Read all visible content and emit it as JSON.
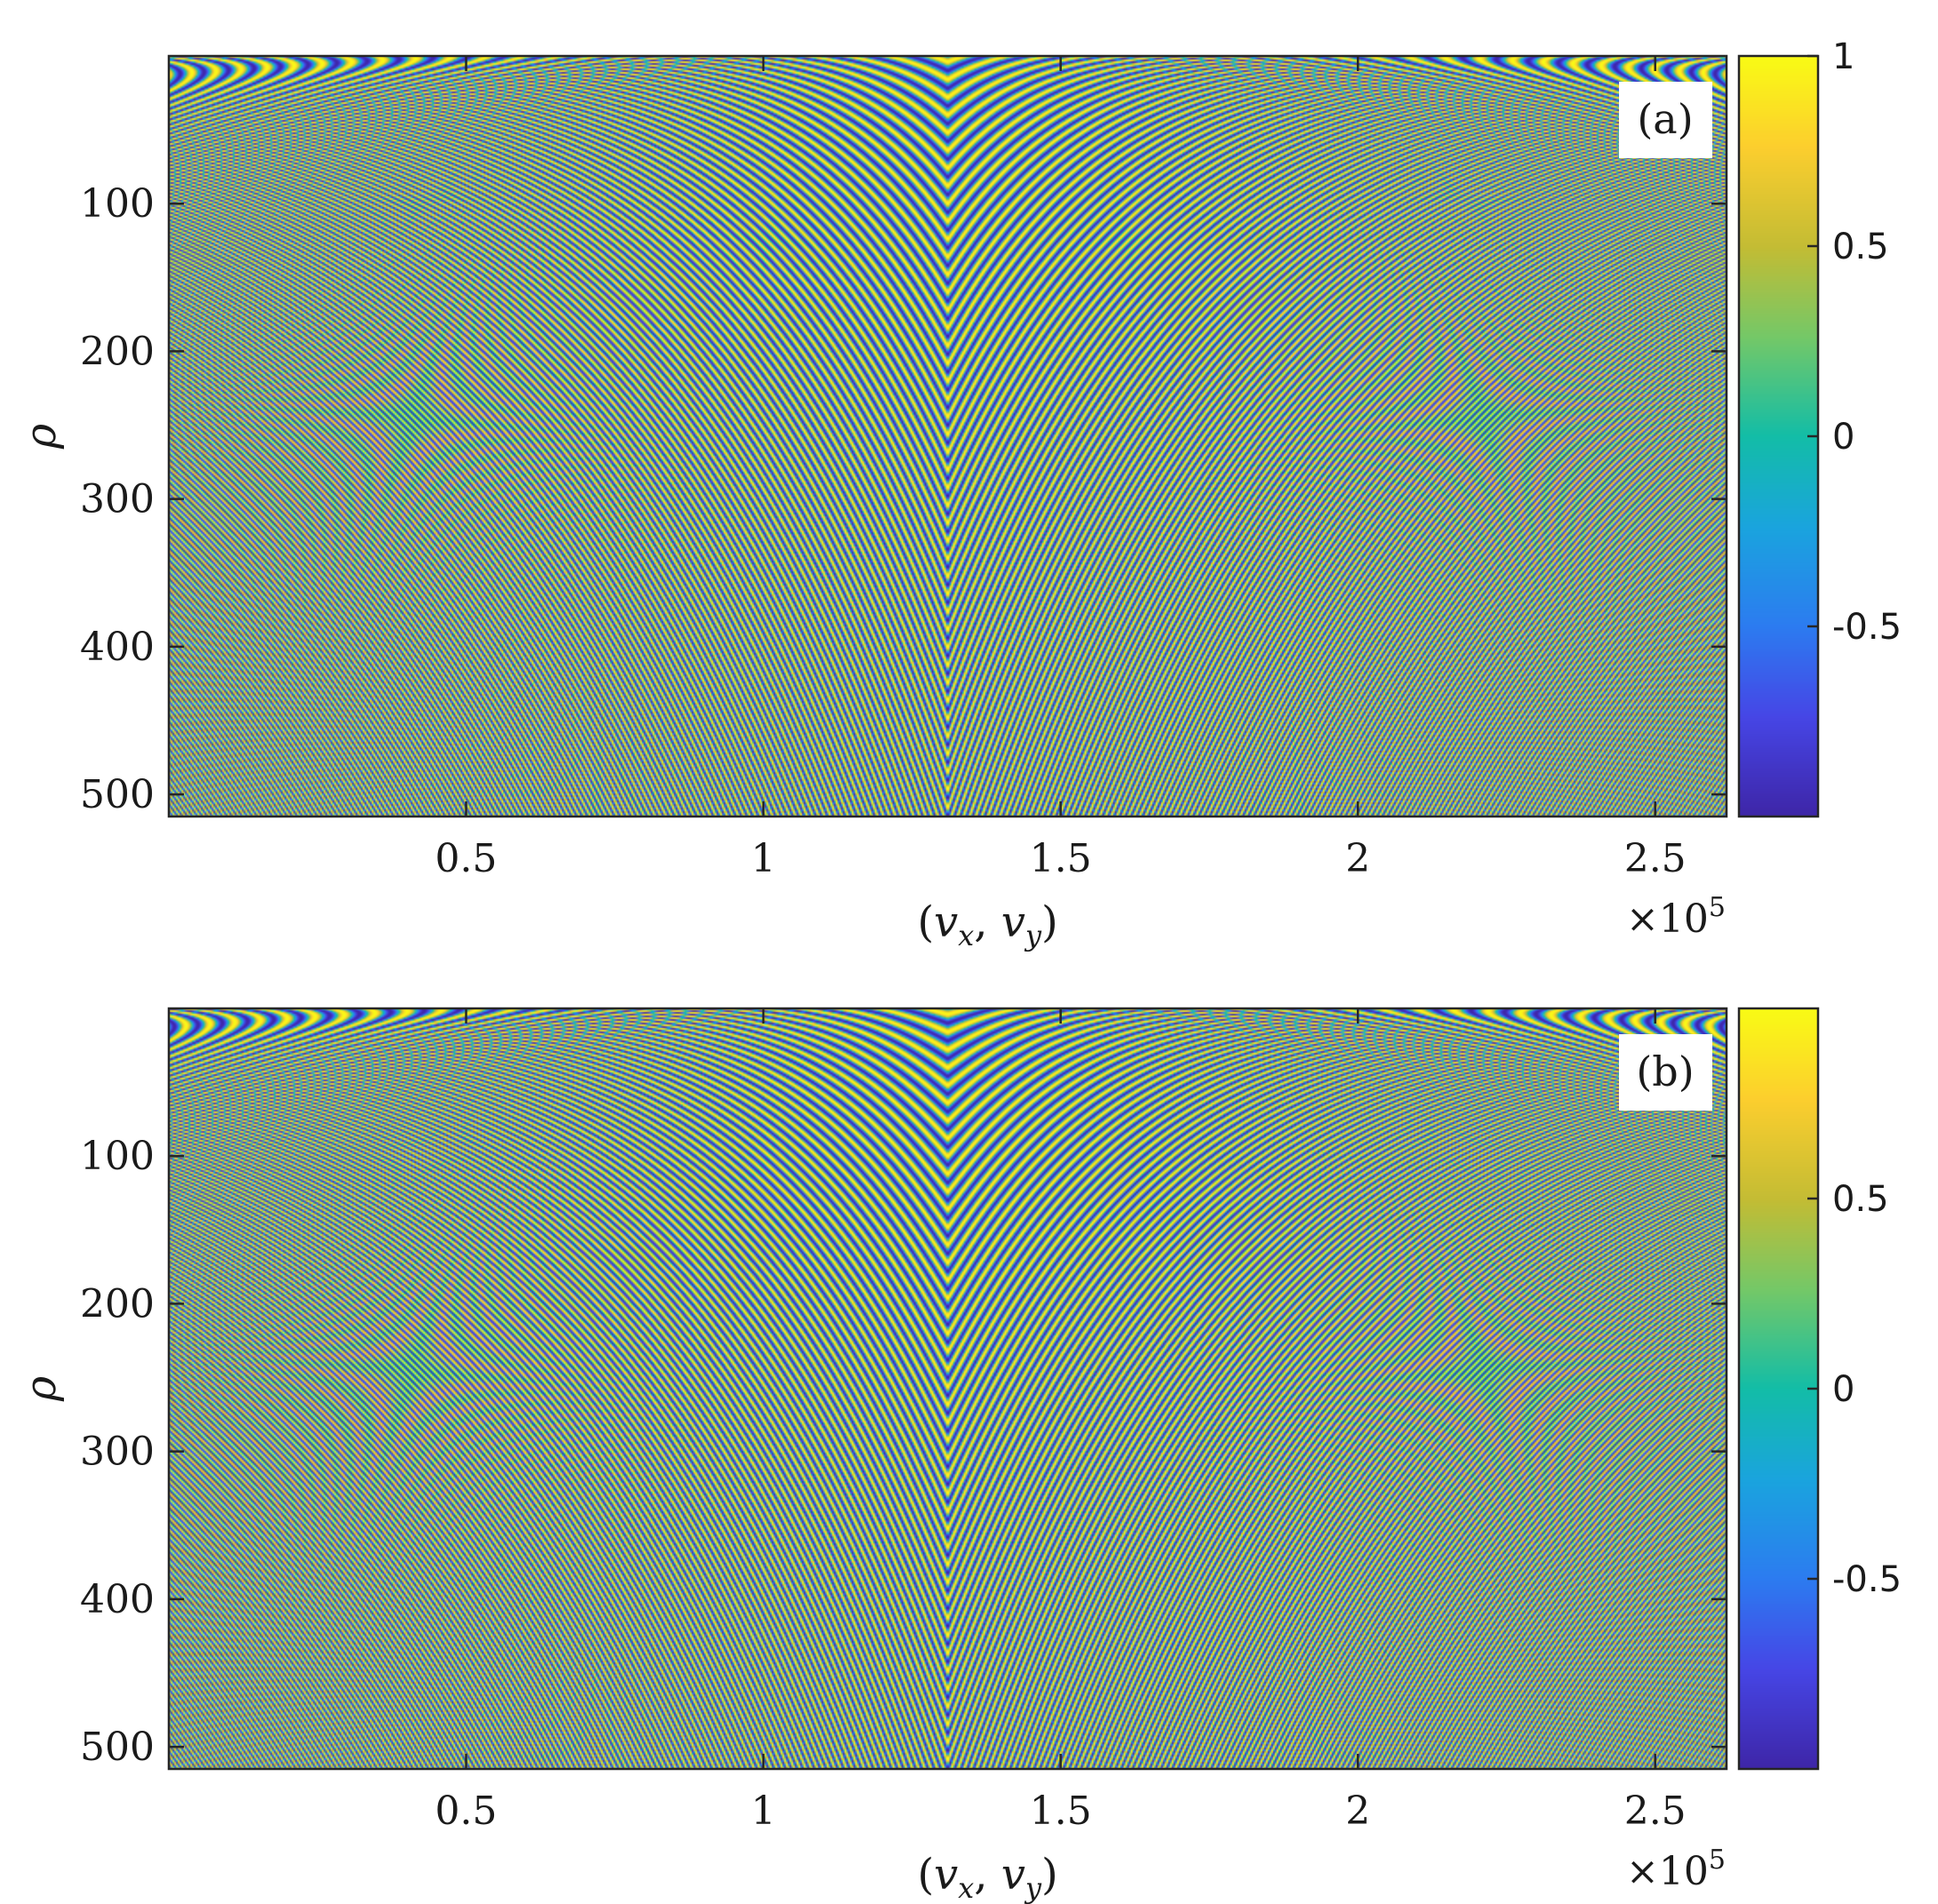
{
  "chart_data": [
    {
      "panel": "(a)",
      "type": "heatmap",
      "xlabel": "(v_x, v_y)",
      "ylabel": "ρ",
      "x_multiplier": "×10^5",
      "xticks": [
        0.5,
        1,
        1.5,
        2,
        2.5
      ],
      "xtick_labels": [
        "0.5",
        "1",
        "1.5",
        "2",
        "2.5"
      ],
      "yticks": [
        100,
        200,
        300,
        400,
        500
      ],
      "ytick_labels": [
        "100",
        "200",
        "300",
        "400",
        "500"
      ],
      "xlim": [
        0,
        2.62
      ],
      "ylim": [
        0,
        515
      ],
      "y_reversed": true,
      "colorbar": {
        "range": [
          -1,
          1
        ],
        "ticks": [
          1,
          0.5,
          0,
          -0.5
        ],
        "tick_labels": [
          "1",
          "0.5",
          "0",
          "-0.5"
        ]
      },
      "colormap": "parula",
      "pattern": {
        "function": "cos",
        "center_x": 1.31,
        "phase_deg": 0
      },
      "colors": {
        "dark": "#3e26a8",
        "blue": "#2c7cf0",
        "teal": "#13bda7",
        "yellow": "#f9fb15"
      }
    },
    {
      "panel": "(b)",
      "type": "heatmap",
      "xlabel": "(v_x, v_y)",
      "ylabel": "ρ",
      "x_multiplier": "×10^5",
      "xticks": [
        0.5,
        1,
        1.5,
        2,
        2.5
      ],
      "xtick_labels": [
        "0.5",
        "1",
        "1.5",
        "2",
        "2.5"
      ],
      "yticks": [
        100,
        200,
        300,
        400,
        500
      ],
      "ytick_labels": [
        "100",
        "200",
        "300",
        "400",
        "500"
      ],
      "xlim": [
        0,
        2.62
      ],
      "ylim": [
        0,
        515
      ],
      "y_reversed": true,
      "colorbar": {
        "range": [
          -1,
          1
        ],
        "ticks": [
          0.5,
          0,
          -0.5
        ],
        "tick_labels": [
          "0.5",
          "0",
          "-0.5"
        ]
      },
      "colormap": "parula",
      "pattern": {
        "function": "sin",
        "center_x": 1.31,
        "phase_deg": 90
      },
      "colors": {
        "dark": "#3e26a8",
        "blue": "#2c7cf0",
        "teal": "#13bda7",
        "yellow": "#f9fb15"
      }
    }
  ]
}
